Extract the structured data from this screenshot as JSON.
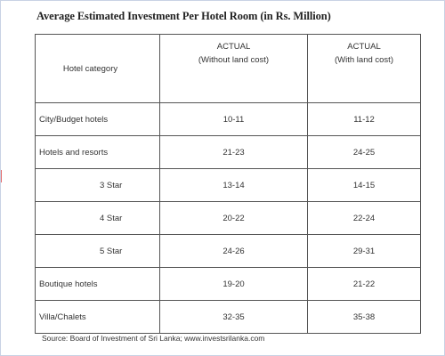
{
  "title": "Average Estimated Investment Per Hotel Room (in Rs. Million)",
  "table": {
    "headers": {
      "category": "Hotel category",
      "col1_line1": "ACTUAL",
      "col1_line2": "(Without land cost)",
      "col2_line1": "ACTUAL",
      "col2_line2": "(With land cost)"
    },
    "rows": [
      {
        "category": "City/Budget  hotels",
        "without_land": "10-11",
        "with_land": "11-12"
      },
      {
        "category": "Hotels and resorts",
        "without_land": "21-23",
        "with_land": "24-25"
      },
      {
        "category": "3 Star",
        "without_land": "13-14",
        "with_land": "14-15"
      },
      {
        "category": "4 Star",
        "without_land": "20-22",
        "with_land": "22-24"
      },
      {
        "category": "5 Star",
        "without_land": "24-26",
        "with_land": "29-31"
      },
      {
        "category": "Boutique hotels",
        "without_land": "19-20",
        "with_land": "21-22"
      },
      {
        "category": "Villa/Chalets",
        "without_land": "32-35",
        "with_land": "35-38"
      }
    ]
  },
  "source": "Source: Board of Investment of Sri Lanka; www.investsrilanka.com"
}
